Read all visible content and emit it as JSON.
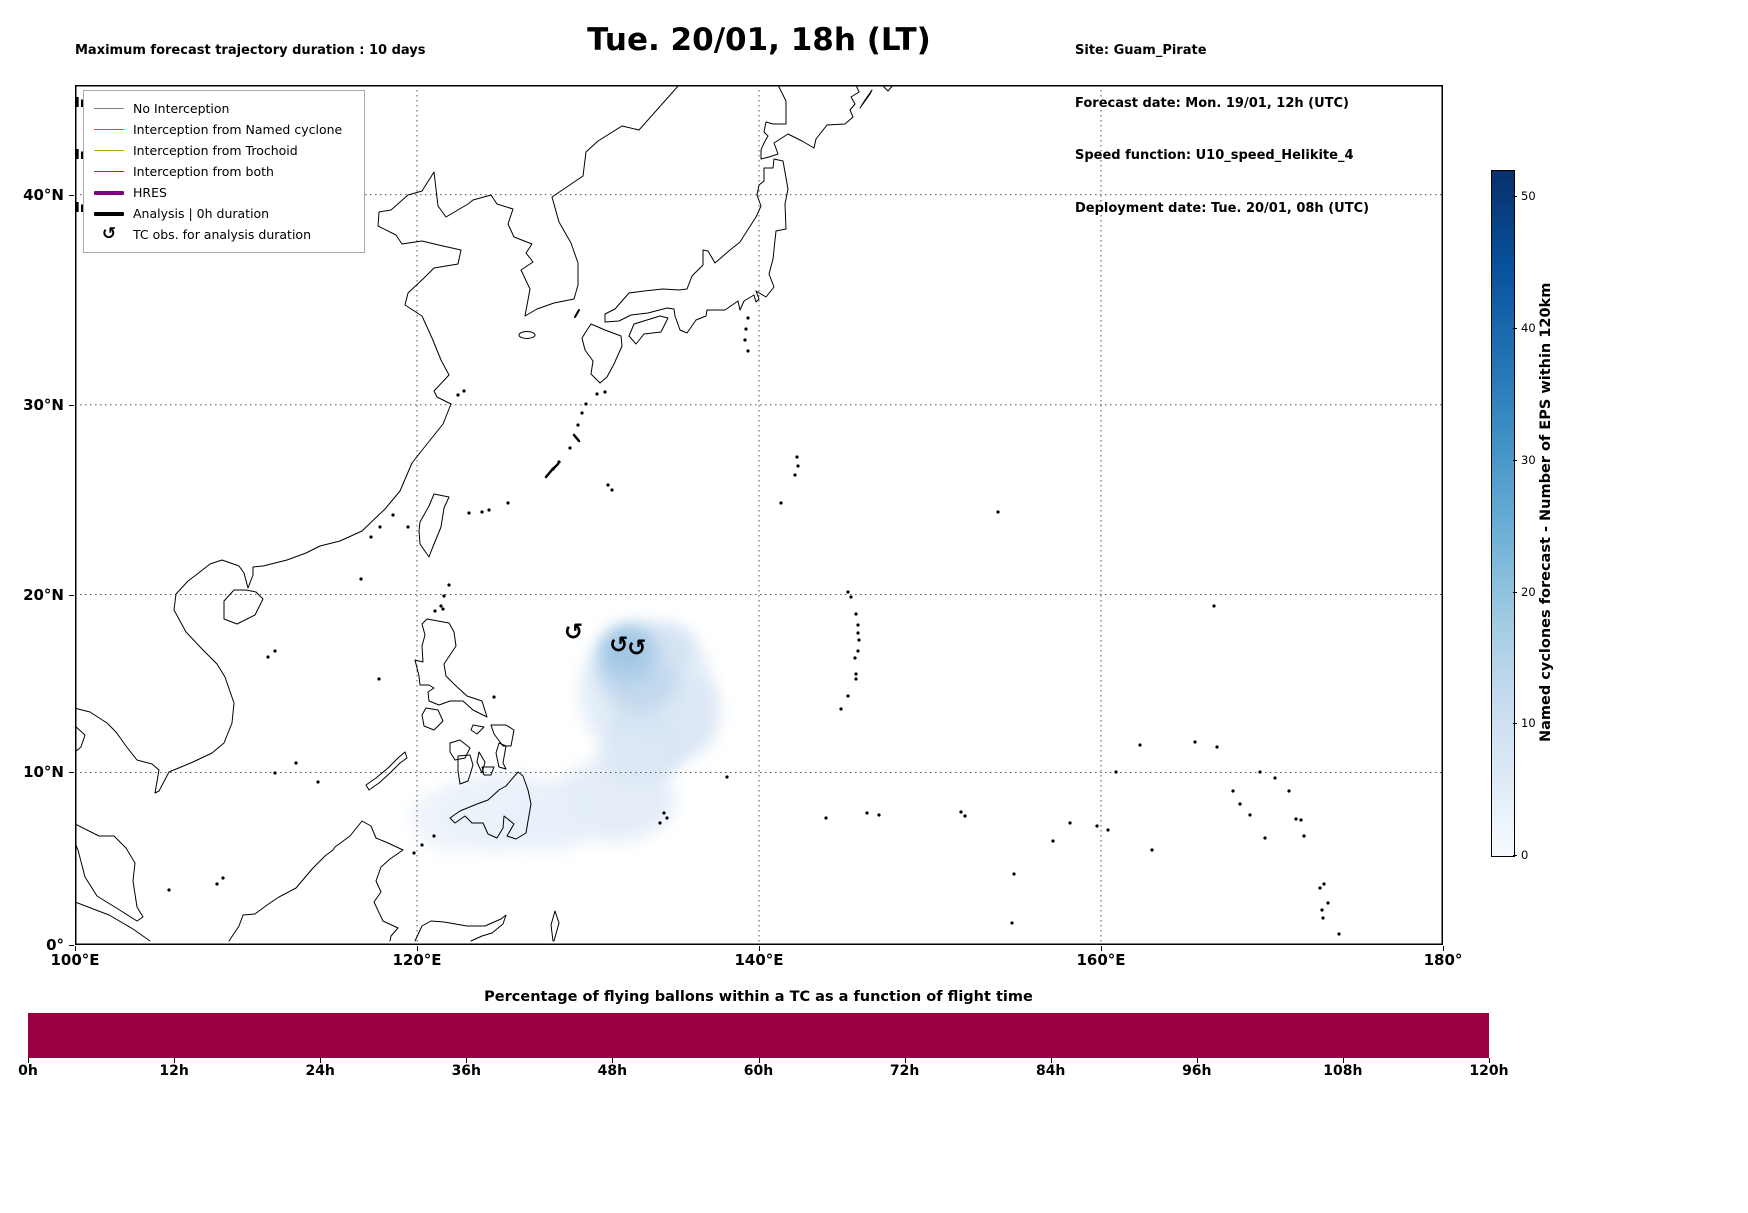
{
  "header": {
    "title": "Tue. 20/01, 18h (LT)",
    "left_lines": [
      "Maximum forecast trajectory duration : 10 days",
      "Intercept distance: 300km",
      "Intercept RW2 (EPS):  30km/h2",
      "Intercept RW2 (HRES): 30km/h2"
    ],
    "right_lines": [
      "Site: Guam_Pirate",
      "Forecast date: Mon. 19/01, 12h (UTC)",
      "Speed function: U10_speed_Helikite_4",
      "Deployment date: Tue. 20/01, 08h (UTC)"
    ]
  },
  "legend": {
    "items": [
      {
        "type": "line",
        "label": "No Interception",
        "color": "#7f7f7f",
        "lw": 1.5
      },
      {
        "type": "line",
        "label": "Interception from Named cyclone",
        "color": "#ff4500",
        "lw": 1.5
      },
      {
        "type": "line",
        "label": "Interception from Trochoid",
        "color": "#a8a91c",
        "lw": 1.5
      },
      {
        "type": "line",
        "label": "Interception from both",
        "color": "#007f00",
        "lw": 1.5
      },
      {
        "type": "line",
        "label": "HRES",
        "color": "#800080",
        "lw": 4
      },
      {
        "type": "line",
        "label": "Analysis | 0h duration",
        "color": "#000000",
        "lw": 4
      },
      {
        "type": "symbol",
        "label": "TC obs. for analysis duration",
        "symbol": "↺"
      }
    ]
  },
  "chart_data": [
    {
      "type": "map",
      "title": "Tue. 20/01, 18h (LT)",
      "projection": "mercator",
      "lon_range": [
        100,
        180
      ],
      "lat_range": [
        0,
        44.72
      ],
      "grid": true,
      "grid_lons": [
        120,
        140,
        160
      ],
      "grid_lats": [
        10,
        20,
        30,
        40
      ],
      "x_ticks": [
        {
          "lon": 100,
          "label": "100°E"
        },
        {
          "lon": 120,
          "label": "120°E"
        },
        {
          "lon": 140,
          "label": "140°E"
        },
        {
          "lon": 160,
          "label": "160°E"
        },
        {
          "lon": 180,
          "label": "180°"
        }
      ],
      "y_ticks": [
        {
          "lat": 0,
          "label": "0°"
        },
        {
          "lat": 10,
          "label": "10°N"
        },
        {
          "lat": 20,
          "label": "20°N"
        },
        {
          "lat": 30,
          "label": "30°N"
        },
        {
          "lat": 40,
          "label": "40°N"
        }
      ],
      "tc_symbol": "↺",
      "tc_obs": [
        {
          "lon": 129.15,
          "lat": 17.85
        },
        {
          "lon": 131.8,
          "lat": 17.1
        },
        {
          "lon": 132.85,
          "lat": 16.95
        }
      ],
      "eps_density_colormap": "Blues",
      "eps_density_blobs": [
        {
          "lon": 133.4,
          "lat": 14.6,
          "rx": 3.9,
          "ry": 4.0,
          "color": "#e2ecf7",
          "opacity": 0.95
        },
        {
          "lon": 131.6,
          "lat": 8.4,
          "rx": 3.5,
          "ry": 2.4,
          "color": "#e2ecf7",
          "opacity": 0.9
        },
        {
          "lon": 127.9,
          "lat": 7.5,
          "rx": 2.7,
          "ry": 2.0,
          "color": "#e6eff8",
          "opacity": 0.9
        },
        {
          "lon": 124.8,
          "lat": 7.7,
          "rx": 3.4,
          "ry": 2.3,
          "color": "#e9f1f9",
          "opacity": 0.9
        },
        {
          "lon": 121.9,
          "lat": 7.3,
          "rx": 2.2,
          "ry": 1.8,
          "color": "#ebf2fa",
          "opacity": 0.9
        },
        {
          "lon": 133.9,
          "lat": 12.7,
          "rx": 2.5,
          "ry": 2.7,
          "color": "#d3e3f2",
          "opacity": 0.95
        },
        {
          "lon": 136.0,
          "lat": 13.3,
          "rx": 1.7,
          "ry": 2.3,
          "color": "#dce8f5",
          "opacity": 0.9
        },
        {
          "lon": 132.9,
          "lat": 10.9,
          "rx": 2.3,
          "ry": 1.7,
          "color": "#dce8f5",
          "opacity": 0.9
        },
        {
          "lon": 133.0,
          "lat": 15.8,
          "rx": 2.4,
          "ry": 2.2,
          "color": "#c2d8ed",
          "opacity": 0.95
        },
        {
          "lon": 134.8,
          "lat": 17.1,
          "rx": 1.4,
          "ry": 1.2,
          "color": "#d3e3f2",
          "opacity": 0.9
        },
        {
          "lon": 132.4,
          "lat": 16.7,
          "rx": 1.7,
          "ry": 1.6,
          "color": "#adcee8",
          "opacity": 0.95
        },
        {
          "lon": 132.2,
          "lat": 16.9,
          "rx": 1.0,
          "ry": 0.9,
          "color": "#9fc5e3",
          "opacity": 0.95
        }
      ]
    },
    {
      "type": "colorbar",
      "label": "Named cyclones forecast - Number of EPS within 120km",
      "orientation": "vertical",
      "colormap": "Blues",
      "vmin": 0,
      "vmax": 52,
      "ticks": [
        0,
        10,
        20,
        30,
        40,
        50
      ]
    },
    {
      "type": "bar-strip",
      "title": "Percentage of flying ballons within a TC as a function of flight time",
      "x_ticks": [
        "0h",
        "12h",
        "24h",
        "36h",
        "48h",
        "60h",
        "72h",
        "84h",
        "96h",
        "108h",
        "120h"
      ],
      "x_range_hours": [
        0,
        120
      ],
      "bar_color": "#9a0041",
      "uniform_fill": true
    }
  ]
}
